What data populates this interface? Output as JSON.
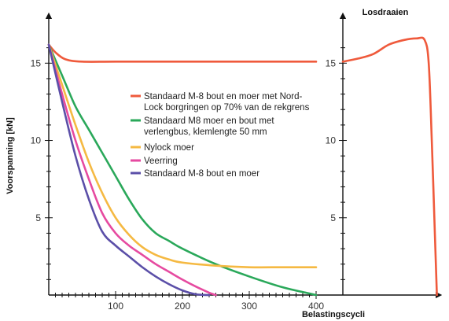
{
  "chart_data": [
    {
      "type": "line",
      "title": "",
      "xlabel": "Belastingscycli",
      "ylabel": "Voorspanning [kN]",
      "xlim": [
        0,
        420
      ],
      "ylim": [
        0,
        17
      ],
      "x_ticks": [
        100,
        200,
        300,
        400
      ],
      "y_ticks": [
        5,
        10,
        15
      ],
      "grid": false,
      "legend_placement": "center",
      "series": [
        {
          "name": "Standaard M-8 bout en moer met Nord-Lock borgringen op 70% van de rekgrens",
          "color": "#ef5a3c",
          "points": [
            [
              0,
              16.2
            ],
            [
              10,
              15.7
            ],
            [
              25,
              15.25
            ],
            [
              50,
              15.1
            ],
            [
              100,
              15.1
            ],
            [
              200,
              15.1
            ],
            [
              300,
              15.1
            ],
            [
              400,
              15.1
            ]
          ]
        },
        {
          "name": "Standaard M8 moer en bout met verlengbus, klemlengte 50 mm",
          "color": "#2aa85a",
          "points": [
            [
              0,
              16.2
            ],
            [
              20,
              14.2
            ],
            [
              40,
              12.2
            ],
            [
              60,
              10.7
            ],
            [
              80,
              9.2
            ],
            [
              100,
              7.7
            ],
            [
              120,
              6.2
            ],
            [
              140,
              4.9
            ],
            [
              160,
              4.0
            ],
            [
              180,
              3.5
            ],
            [
              200,
              3.0
            ],
            [
              250,
              2.0
            ],
            [
              300,
              1.2
            ],
            [
              350,
              0.5
            ],
            [
              390,
              0.1
            ],
            [
              400,
              0.0
            ]
          ]
        },
        {
          "name": "Nylock moer",
          "color": "#f5b942",
          "points": [
            [
              0,
              16.2
            ],
            [
              20,
              13.6
            ],
            [
              40,
              11.0
            ],
            [
              60,
              8.6
            ],
            [
              80,
              6.6
            ],
            [
              100,
              5.0
            ],
            [
              120,
              3.9
            ],
            [
              140,
              3.1
            ],
            [
              160,
              2.6
            ],
            [
              180,
              2.3
            ],
            [
              200,
              2.1
            ],
            [
              250,
              1.9
            ],
            [
              300,
              1.8
            ],
            [
              350,
              1.8
            ],
            [
              400,
              1.8
            ]
          ]
        },
        {
          "name": "Veerring",
          "color": "#e64aa0",
          "points": [
            [
              0,
              16.2
            ],
            [
              20,
              13.0
            ],
            [
              40,
              10.0
            ],
            [
              60,
              7.5
            ],
            [
              80,
              5.3
            ],
            [
              100,
              4.0
            ],
            [
              120,
              3.2
            ],
            [
              140,
              2.6
            ],
            [
              160,
              2.0
            ],
            [
              180,
              1.5
            ],
            [
              200,
              1.0
            ],
            [
              220,
              0.55
            ],
            [
              240,
              0.15
            ],
            [
              250,
              0.0
            ]
          ]
        },
        {
          "name": "Standaard M-8 bout en moer",
          "color": "#5b4fa8",
          "points": [
            [
              0,
              16.2
            ],
            [
              20,
              12.5
            ],
            [
              40,
              9.0
            ],
            [
              60,
              6.2
            ],
            [
              80,
              4.1
            ],
            [
              100,
              3.2
            ],
            [
              120,
              2.5
            ],
            [
              140,
              1.8
            ],
            [
              160,
              1.2
            ],
            [
              180,
              0.7
            ],
            [
              200,
              0.3
            ],
            [
              220,
              0.05
            ],
            [
              240,
              0.0
            ]
          ]
        }
      ]
    },
    {
      "type": "line",
      "title": "Losdraaien",
      "xlabel": "",
      "ylabel": "",
      "y_ticks": [
        5,
        10,
        15
      ],
      "grid": false,
      "series": [
        {
          "name": "",
          "color": "#ef5a3c",
          "points": [
            [
              0,
              15.1
            ],
            [
              0.15,
              15.3
            ],
            [
              0.3,
              15.6
            ],
            [
              0.45,
              16.2
            ],
            [
              0.6,
              16.5
            ],
            [
              0.72,
              16.6
            ],
            [
              0.8,
              16.5
            ],
            [
              0.84,
              15.0
            ],
            [
              0.87,
              10.0
            ],
            [
              0.9,
              4.0
            ],
            [
              0.92,
              0.0
            ]
          ]
        }
      ]
    }
  ]
}
